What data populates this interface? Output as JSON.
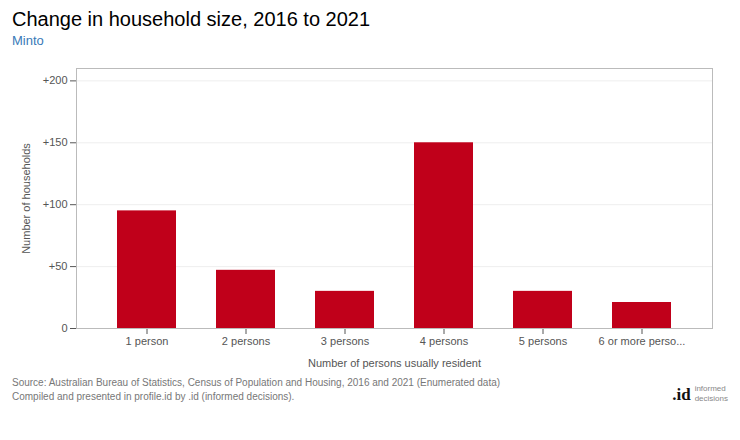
{
  "chart_data": {
    "type": "bar",
    "title": "Change in household size, 2016 to 2021",
    "subtitle": "Minto",
    "categories": [
      "1 person",
      "2 persons",
      "3 persons",
      "4 persons",
      "5 persons",
      "6 or more perso..."
    ],
    "values": [
      95,
      47,
      30,
      150,
      30,
      21
    ],
    "color": "#C0001A",
    "xlabel": "Number of persons usually resident",
    "ylabel": "Number of households",
    "ylim": [
      0,
      210
    ],
    "yticks": [
      0,
      {
        "value": 50,
        "label": "+50"
      },
      {
        "value": 100,
        "label": "+100"
      },
      {
        "value": 150,
        "label": "+150"
      },
      {
        "value": 200,
        "label": "+200"
      }
    ],
    "grid": true,
    "caption": "Source: Australian Bureau of Statistics, Census of Population and Housing, 2016 and 2021 (Enumerated data)\nCompiled and presented in profile.id by .id (informed decisions).",
    "annotations": [
      ".id",
      "informed\ndecisions"
    ]
  }
}
